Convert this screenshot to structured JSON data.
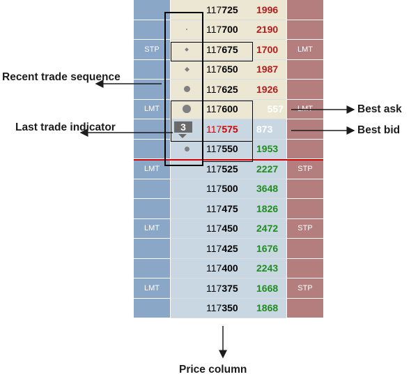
{
  "ladder": {
    "rows": [
      {
        "price_prefix": "117",
        "price_suffix": "725",
        "volume": "1996",
        "buy_order": "",
        "sell_order": ""
      },
      {
        "price_prefix": "117",
        "price_suffix": "700",
        "volume": "2190",
        "buy_order": "",
        "sell_order": ""
      },
      {
        "price_prefix": "117",
        "price_suffix": "675",
        "volume": "1700",
        "buy_order": "STP",
        "sell_order": "LMT"
      },
      {
        "price_prefix": "117",
        "price_suffix": "650",
        "volume": "1987",
        "buy_order": "",
        "sell_order": ""
      },
      {
        "price_prefix": "117",
        "price_suffix": "625",
        "volume": "1926",
        "buy_order": "",
        "sell_order": ""
      },
      {
        "price_prefix": "117",
        "price_suffix": "600",
        "volume": "557",
        "buy_order": "LMT",
        "sell_order": "LMT"
      },
      {
        "price_prefix": "117",
        "price_suffix": "575",
        "volume": "873",
        "buy_order": "",
        "sell_order": ""
      },
      {
        "price_prefix": "117",
        "price_suffix": "550",
        "volume": "1953",
        "buy_order": "",
        "sell_order": ""
      },
      {
        "price_prefix": "117",
        "price_suffix": "525",
        "volume": "2227",
        "buy_order": "LMT",
        "sell_order": "STP"
      },
      {
        "price_prefix": "117",
        "price_suffix": "500",
        "volume": "3648",
        "buy_order": "",
        "sell_order": ""
      },
      {
        "price_prefix": "117",
        "price_suffix": "475",
        "volume": "1826",
        "buy_order": "",
        "sell_order": ""
      },
      {
        "price_prefix": "117",
        "price_suffix": "450",
        "volume": "2472",
        "buy_order": "LMT",
        "sell_order": "STP"
      },
      {
        "price_prefix": "117",
        "price_suffix": "425",
        "volume": "1676",
        "buy_order": "",
        "sell_order": ""
      },
      {
        "price_prefix": "117",
        "price_suffix": "400",
        "volume": "2243",
        "buy_order": "",
        "sell_order": ""
      },
      {
        "price_prefix": "117",
        "price_suffix": "375",
        "volume": "1668",
        "buy_order": "LMT",
        "sell_order": "STP"
      },
      {
        "price_prefix": "117",
        "price_suffix": "350",
        "volume": "1868",
        "buy_order": "",
        "sell_order": ""
      }
    ],
    "last_trade_count": "3"
  },
  "annotations": {
    "recent_trade_sequence": "Recent trade sequence",
    "last_trade_indicator": "Last trade indicator",
    "best_ask": "Best ask",
    "best_bid": "Best bid",
    "price_column": "Price column"
  },
  "colors": {
    "buy_column": "#8ba7c8",
    "sell_column": "#b47e7e",
    "ask_volume": "#b51b1b",
    "bid_volume": "#1f8c1f",
    "best_ask_bg": "#cc0000",
    "best_bid_bg": "#17a317",
    "spread_line": "#d00000"
  }
}
